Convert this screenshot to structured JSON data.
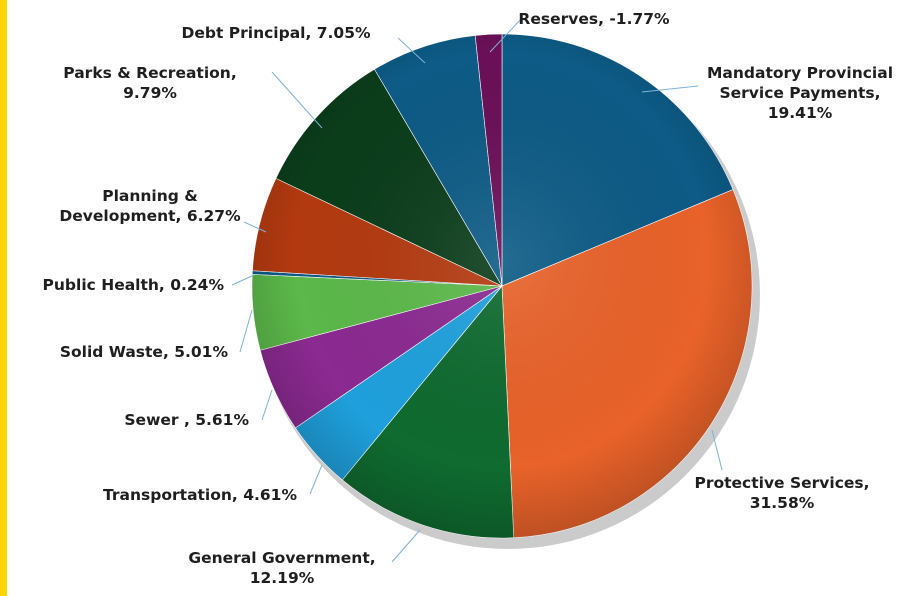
{
  "chart_data": {
    "type": "pie",
    "title": "",
    "edge_color": "#ffd400",
    "slices": [
      {
        "label": "Mandatory Provincial Service Payments, 19.41%",
        "value": 19.41,
        "color": "#0d5b86"
      },
      {
        "label": "Protective Services, 31.58%",
        "value": 31.58,
        "color": "#e8622a"
      },
      {
        "label": "General Government, 12.19%",
        "value": 12.19,
        "color": "#0f6b30"
      },
      {
        "label": "Transportation, 4.61%",
        "value": 4.61,
        "color": "#1fa0dc"
      },
      {
        "label": "Sewer , 5.61%",
        "value": 5.61,
        "color": "#8b2a91"
      },
      {
        "label": "Solid Waste, 5.01%",
        "value": 5.01,
        "color": "#5cb84a"
      },
      {
        "label": "Public Health, 0.24%",
        "value": 0.24,
        "color": "#0d5b86"
      },
      {
        "label": "Planning & Development, 6.27%",
        "value": 6.27,
        "color": "#b33a10"
      },
      {
        "label": "Parks & Recreation, 9.79%",
        "value": 9.79,
        "color": "#0b3d1b"
      },
      {
        "label": "Debt Principal, 7.05%",
        "value": 7.05,
        "color": "#0d5b86"
      },
      {
        "label": "Reserves, -1.77%",
        "value": -1.77,
        "color": "#6b1058"
      }
    ]
  }
}
